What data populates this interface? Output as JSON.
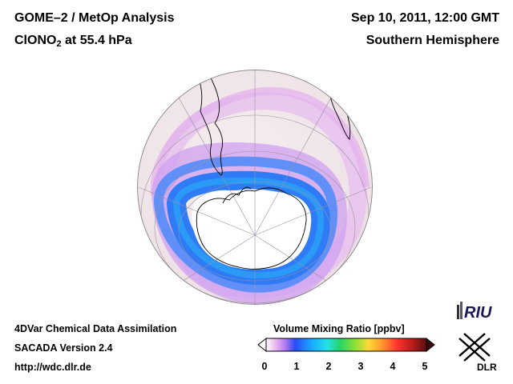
{
  "header": {
    "title_line1": "GOME–2 / MetOp Analysis",
    "title_species": "ClONO",
    "title_subscript": "2",
    "title_level": " at 55.4 hPa",
    "date": "Sep 10, 2011, 12:00 GMT",
    "region": "Southern Hemisphere"
  },
  "footer": {
    "line1": "4DVar Chemical Data Assimilation",
    "line2": "SACADA Version 2.4",
    "line3": "http://wdc.dlr.de"
  },
  "colorbar": {
    "title": "Volume Mixing Ratio [ppbv]",
    "ticks": [
      "0",
      "1",
      "2",
      "3",
      "4",
      "5"
    ]
  },
  "logos": {
    "riu": "RIU",
    "dlr": "DLR"
  },
  "colors": {
    "ocean": "#f3e6ea",
    "land_interior": "#ffffff",
    "low_band": "#e8b4ee",
    "high_band": "#2f7bf5",
    "outline": "#000000"
  },
  "icons": [
    "riu-logo",
    "dlr-logo"
  ]
}
